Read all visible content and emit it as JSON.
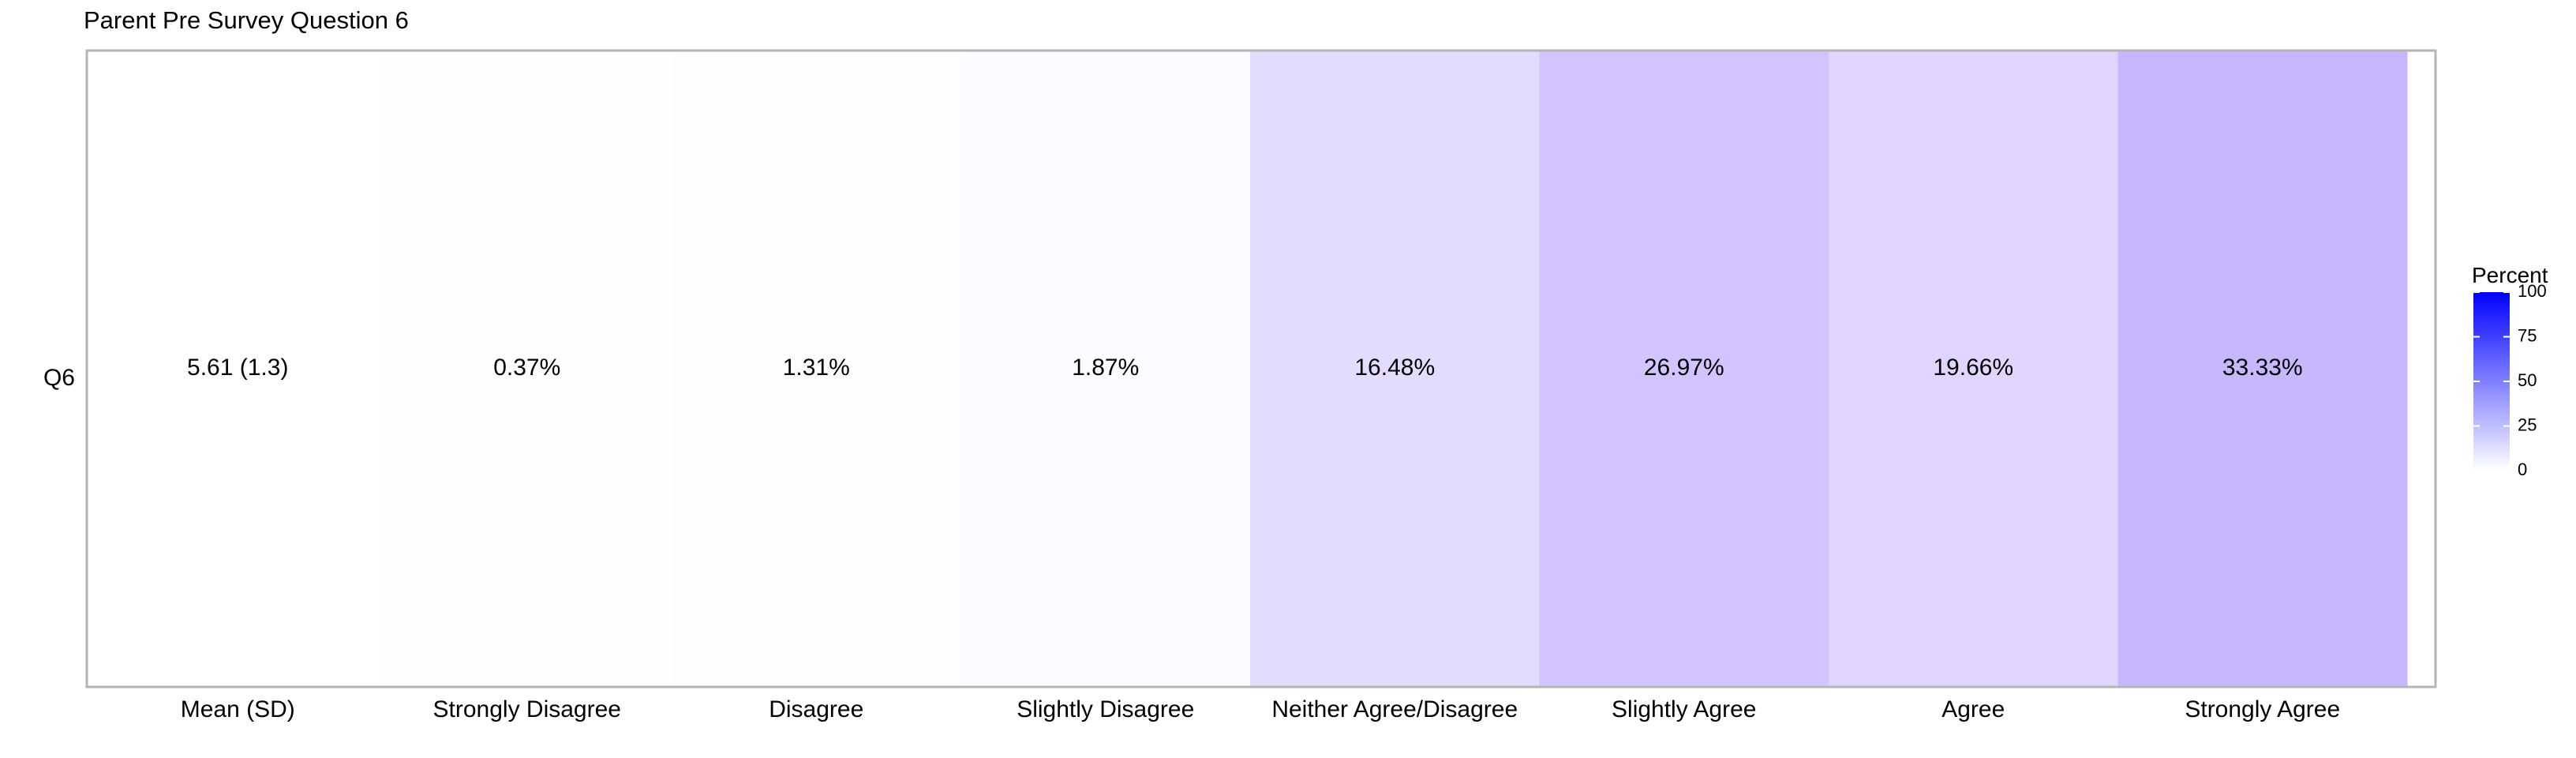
{
  "chart_data": {
    "type": "heatmap",
    "title": "Parent Pre Survey Question 6",
    "row": "Q6",
    "categories": [
      "Mean (SD)",
      "Strongly Disagree",
      "Disagree",
      "Slightly Disagree",
      "Neither Agree/Disagree",
      "Slightly Agree",
      "Agree",
      "Strongly Agree"
    ],
    "labels": [
      "5.61 (1.3)",
      "0.37%",
      "1.31%",
      "1.87%",
      "16.48%",
      "26.97%",
      "19.66%",
      "33.33%"
    ],
    "values": [
      null,
      0.37,
      1.31,
      1.87,
      16.48,
      26.97,
      19.66,
      33.33
    ],
    "legend": {
      "title": "Percent",
      "ticks": [
        0,
        25,
        50,
        75,
        100
      ],
      "range": [
        0,
        100
      ],
      "low_color": "#ffffff",
      "high_color": "#0000ff"
    },
    "grid": false
  }
}
